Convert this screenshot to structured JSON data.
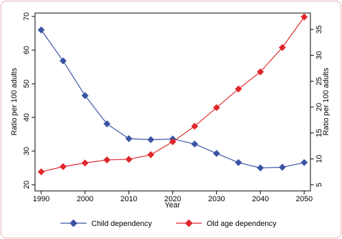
{
  "chart_data": {
    "type": "line",
    "title": "",
    "xlabel": "Year",
    "ylabel_left": "Ratio per 100 adults",
    "ylabel_right": "Ratio per 100 adults",
    "x": [
      1990,
      1995,
      2000,
      2005,
      2010,
      2015,
      2020,
      2025,
      2030,
      2035,
      2040,
      2045,
      2050
    ],
    "xlim": [
      1990,
      2050
    ],
    "xticks": [
      1990,
      2000,
      2010,
      2020,
      2030,
      2040,
      2050
    ],
    "ylim_left": [
      20,
      70
    ],
    "yticks_left": [
      20,
      30,
      40,
      50,
      60,
      70
    ],
    "ylim_right": [
      5,
      37.5
    ],
    "yticks_right": [
      5,
      10,
      15,
      20,
      25,
      30,
      35
    ],
    "grid": false,
    "legend_position": "bottom",
    "series": [
      {
        "name": "Child dependency",
        "axis": "left",
        "color": "#3a53a4",
        "marker": "diamond",
        "values": [
          66.0,
          56.8,
          46.5,
          38.1,
          33.7,
          33.4,
          33.6,
          32.1,
          29.3,
          26.6,
          25.0,
          25.2,
          26.6
        ]
      },
      {
        "name": "Old age dependency",
        "axis": "right",
        "color": "#e0262a",
        "marker": "diamond",
        "values": [
          7.5,
          8.5,
          9.2,
          9.8,
          9.9,
          10.8,
          13.3,
          16.3,
          19.9,
          23.5,
          26.8,
          31.5,
          37.4
        ]
      }
    ]
  }
}
